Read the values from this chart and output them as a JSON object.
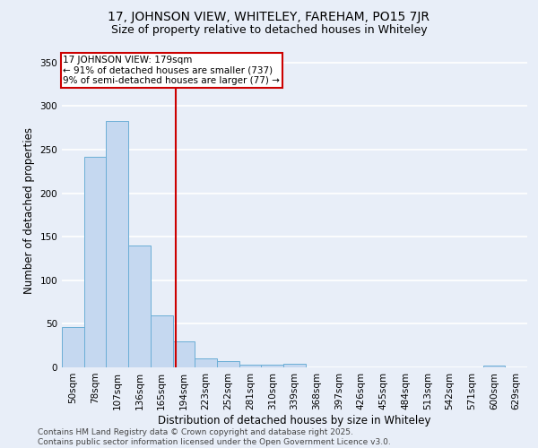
{
  "title_line1": "17, JOHNSON VIEW, WHITELEY, FAREHAM, PO15 7JR",
  "title_line2": "Size of property relative to detached houses in Whiteley",
  "xlabel": "Distribution of detached houses by size in Whiteley",
  "ylabel": "Number of detached properties",
  "bin_labels": [
    "50sqm",
    "78sqm",
    "107sqm",
    "136sqm",
    "165sqm",
    "194sqm",
    "223sqm",
    "252sqm",
    "281sqm",
    "310sqm",
    "339sqm",
    "368sqm",
    "397sqm",
    "426sqm",
    "455sqm",
    "484sqm",
    "513sqm",
    "542sqm",
    "571sqm",
    "600sqm",
    "629sqm"
  ],
  "bar_heights": [
    46,
    242,
    283,
    140,
    60,
    30,
    10,
    7,
    3,
    3,
    4,
    0,
    0,
    0,
    0,
    0,
    0,
    0,
    0,
    2,
    0
  ],
  "bar_color": "#c5d8f0",
  "bar_edge_color": "#6baed6",
  "background_color": "#e8eef8",
  "grid_color": "#ffffff",
  "vline_x_index": 4.62,
  "vline_color": "#cc0000",
  "annotation_text": "17 JOHNSON VIEW: 179sqm\n← 91% of detached houses are smaller (737)\n9% of semi-detached houses are larger (77) →",
  "annotation_box_color": "#ffffff",
  "annotation_box_edge": "#cc0000",
  "ylim": [
    0,
    360
  ],
  "yticks": [
    0,
    50,
    100,
    150,
    200,
    250,
    300,
    350
  ],
  "footnote": "Contains HM Land Registry data © Crown copyright and database right 2025.\nContains public sector information licensed under the Open Government Licence v3.0.",
  "title_fontsize": 10,
  "subtitle_fontsize": 9,
  "axis_label_fontsize": 8.5,
  "tick_fontsize": 7.5,
  "annotation_fontsize": 7.5,
  "footnote_fontsize": 6.5
}
